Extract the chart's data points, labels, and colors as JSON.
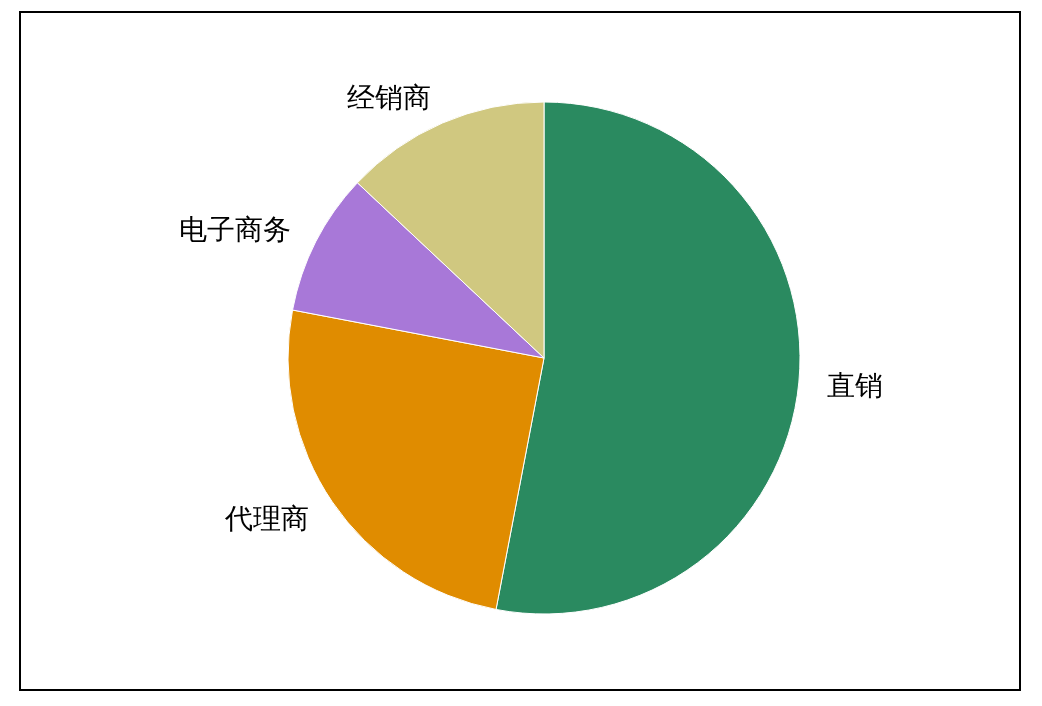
{
  "chart_data": {
    "type": "pie",
    "categories": [
      "直销",
      "代理商",
      "电子商务",
      "经销商"
    ],
    "values": [
      53,
      25,
      9,
      13
    ],
    "colors": [
      "#2a8a60",
      "#e08c00",
      "#a878d8",
      "#d0c880"
    ]
  }
}
